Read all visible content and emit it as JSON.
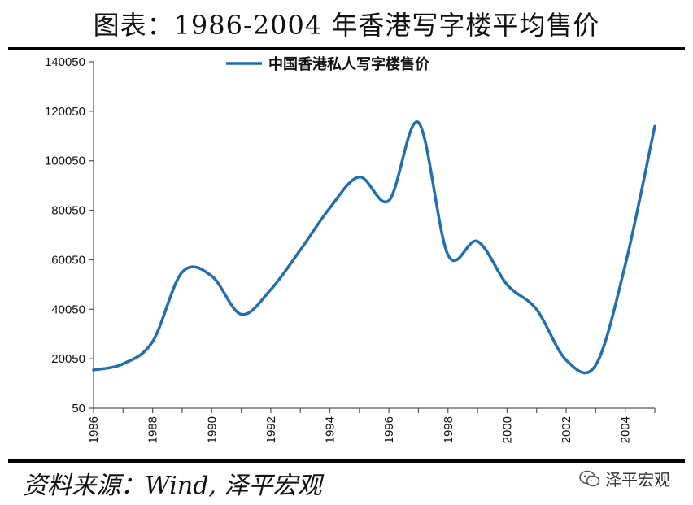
{
  "header": {
    "title": "图表：1986-2004 年香港写字楼平均售价"
  },
  "footer": {
    "source": "资料来源：Wind, 泽平宏观",
    "watermark": "泽平宏观"
  },
  "icons": {
    "watermark": "wechat-icon"
  },
  "colors": {
    "line": "#1f6fb2",
    "axis": "#555555",
    "text": "#111111"
  },
  "chart_data": {
    "type": "line",
    "title": "",
    "xlabel": "",
    "ylabel": "",
    "xlim": [
      1986,
      2005
    ],
    "ylim": [
      50,
      140050
    ],
    "yticks": [
      50,
      20050,
      40050,
      60050,
      80050,
      100050,
      120050,
      140050
    ],
    "xticks": [
      1986,
      1988,
      1990,
      1992,
      1994,
      1996,
      1998,
      2000,
      2002,
      2004
    ],
    "legend": {
      "position": "top-center"
    },
    "grid": false,
    "series": [
      {
        "name": "中国香港私人写字楼售价",
        "x": [
          1986,
          1987,
          1988,
          1989,
          1990,
          1991,
          1992,
          1993,
          1994,
          1995,
          1996,
          1997,
          1998,
          1999,
          2000,
          2001,
          2002,
          2003,
          2004,
          2005
        ],
        "values": [
          15500,
          18000,
          27000,
          55000,
          53500,
          38000,
          48000,
          64000,
          81000,
          93500,
          84000,
          115500,
          62000,
          67500,
          50000,
          40000,
          19500,
          17500,
          58000,
          114000
        ]
      }
    ]
  }
}
